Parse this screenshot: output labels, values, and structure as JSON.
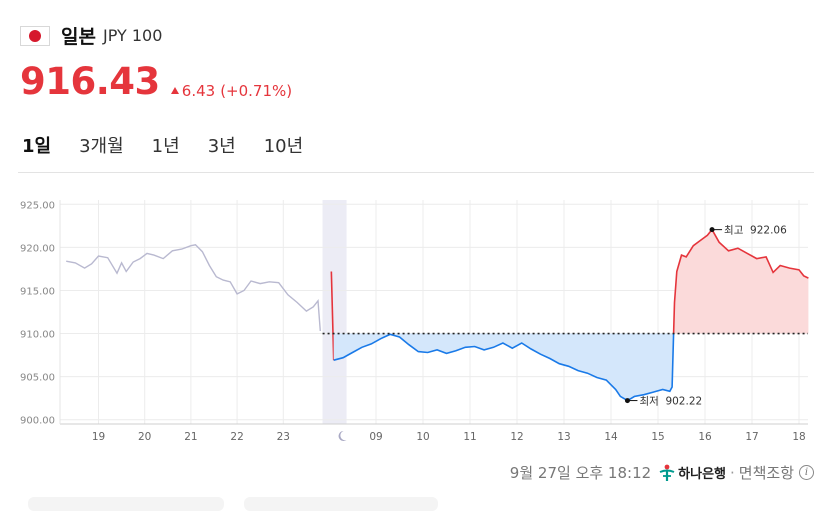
{
  "header": {
    "currency_name": "일본",
    "currency_code": "JPY 100",
    "flag_icon": "japan-flag-icon"
  },
  "quote": {
    "price": "916.43",
    "change": "6.43",
    "change_pct": "(+0.71%)",
    "direction": "up"
  },
  "tabs": [
    {
      "label": "1일",
      "active": true
    },
    {
      "label": "3개월",
      "active": false
    },
    {
      "label": "1년",
      "active": false
    },
    {
      "label": "3년",
      "active": false
    },
    {
      "label": "10년",
      "active": false
    }
  ],
  "chart_data": {
    "type": "line",
    "ylim": [
      899.5,
      925.5
    ],
    "y_ticks": [
      "900.00",
      "905.00",
      "910.00",
      "915.00",
      "920.00",
      "925.00"
    ],
    "x_ticks": [
      "19",
      "20",
      "21",
      "22",
      "23",
      "09",
      "10",
      "11",
      "12",
      "13",
      "14",
      "15",
      "16",
      "17",
      "18"
    ],
    "baseline": 910.0,
    "colors": {
      "history": "#b9b9d0",
      "down": "#1a7ae8",
      "up": "#e5353c",
      "down_fill": "#d4e7fb",
      "up_fill": "#fbdada",
      "night_band": "#ececf5"
    },
    "night_icon": "moon-icon",
    "history_series": {
      "x": [
        18.3,
        18.5,
        18.7,
        18.85,
        19.0,
        19.2,
        19.4,
        19.5,
        19.6,
        19.75,
        19.9,
        20.05,
        20.2,
        20.4,
        20.6,
        20.8,
        21.0,
        21.1,
        21.25,
        21.4,
        21.55,
        21.7,
        21.85,
        22.0,
        22.15,
        22.3,
        22.5,
        22.7,
        22.9,
        23.1,
        23.3,
        23.5,
        23.65,
        23.75,
        23.8
      ],
      "y": [
        918.4,
        918.2,
        917.6,
        918.1,
        919.0,
        918.8,
        917.0,
        918.2,
        917.2,
        918.3,
        918.7,
        919.3,
        919.1,
        918.7,
        919.6,
        919.8,
        920.2,
        920.3,
        919.5,
        917.9,
        916.6,
        916.2,
        916.0,
        914.6,
        915.0,
        916.1,
        915.8,
        916.0,
        915.9,
        914.5,
        913.6,
        912.6,
        913.1,
        913.8,
        910.3
      ]
    },
    "today_series": {
      "x": [
        8.05,
        8.1,
        8.3,
        8.5,
        8.7,
        8.9,
        9.1,
        9.3,
        9.5,
        9.7,
        9.9,
        10.1,
        10.3,
        10.5,
        10.7,
        10.9,
        11.1,
        11.3,
        11.5,
        11.7,
        11.9,
        12.1,
        12.3,
        12.5,
        12.7,
        12.9,
        13.1,
        13.3,
        13.5,
        13.7,
        13.9,
        14.1,
        14.2,
        14.35,
        14.5,
        14.7,
        14.9,
        15.1,
        15.25,
        15.3,
        15.35,
        15.4,
        15.5,
        15.6,
        15.75,
        15.9,
        16.05,
        16.15,
        16.3,
        16.5,
        16.7,
        16.9,
        17.1,
        17.3,
        17.45,
        17.6,
        17.8,
        18.0,
        18.1,
        18.2
      ],
      "y": [
        917.2,
        906.9,
        907.2,
        907.8,
        908.4,
        908.8,
        909.4,
        909.9,
        909.6,
        908.7,
        907.9,
        907.8,
        908.1,
        907.7,
        908.0,
        908.4,
        908.5,
        908.1,
        908.4,
        908.9,
        908.3,
        908.9,
        908.2,
        907.6,
        907.1,
        906.5,
        906.2,
        905.7,
        905.4,
        904.9,
        904.6,
        903.5,
        902.7,
        902.22,
        902.7,
        902.9,
        903.2,
        903.5,
        903.3,
        903.8,
        913.6,
        917.2,
        919.1,
        918.9,
        920.2,
        920.8,
        921.4,
        922.06,
        920.6,
        919.6,
        919.9,
        919.3,
        918.7,
        918.9,
        917.1,
        917.9,
        917.6,
        917.4,
        916.7,
        916.43
      ]
    },
    "annotations": [
      {
        "label": "최고",
        "value": "922.06",
        "x": 16.15,
        "y": 922.06
      },
      {
        "label": "최저",
        "value": "902.22",
        "x": 14.35,
        "y": 902.22
      }
    ]
  },
  "footer": {
    "timestamp": "9월 27일 오후 18:12",
    "bank_name": "하나은행",
    "bank_icon": "hana-bank-logo-icon",
    "separator": "·",
    "disclaimer": "면책조항",
    "info_icon": "info-icon",
    "info_glyph": "i"
  }
}
